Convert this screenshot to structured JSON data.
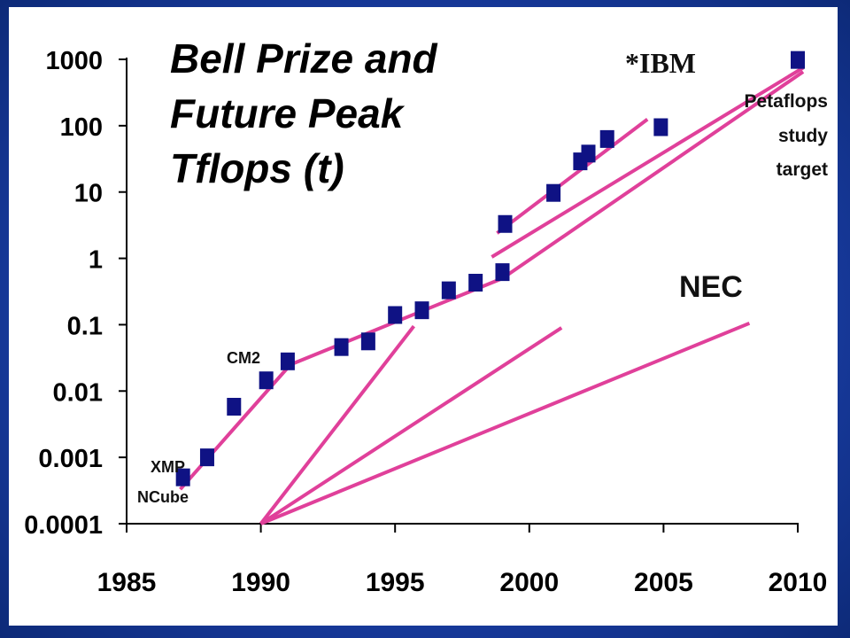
{
  "chart_data": {
    "type": "scatter",
    "title_lines": [
      "Bell Prize and",
      "Future Peak",
      "Tflops (t)"
    ],
    "yscale": "log",
    "ylim": [
      0.0001,
      1000
    ],
    "xlim": [
      1985,
      2010
    ],
    "yticks": [
      "1000",
      "100",
      "10",
      "1",
      "0.1",
      "0.01",
      "0.001",
      "0.0001"
    ],
    "ytick_values": [
      1000,
      100,
      10,
      1,
      0.1,
      0.01,
      0.001,
      0.0001
    ],
    "xticks": [
      "1985",
      "1990",
      "1995",
      "2000",
      "2005",
      "2010"
    ],
    "xtick_values": [
      1985,
      1990,
      1995,
      2000,
      2005,
      2010
    ],
    "grid": false,
    "marker_color": "#0f1284",
    "line_color": "#e0409a",
    "points": [
      {
        "x": 1987.1,
        "y": 0.0005
      },
      {
        "x": 1988.0,
        "y": 0.001
      },
      {
        "x": 1989.0,
        "y": 0.0058
      },
      {
        "x": 1990.2,
        "y": 0.0145
      },
      {
        "x": 1991.0,
        "y": 0.028
      },
      {
        "x": 1993.0,
        "y": 0.046
      },
      {
        "x": 1994.0,
        "y": 0.056
      },
      {
        "x": 1995.0,
        "y": 0.14
      },
      {
        "x": 1996.0,
        "y": 0.165
      },
      {
        "x": 1997.0,
        "y": 0.33
      },
      {
        "x": 1998.0,
        "y": 0.43
      },
      {
        "x": 1999.0,
        "y": 0.62
      },
      {
        "x": 1999.1,
        "y": 3.3
      },
      {
        "x": 2000.9,
        "y": 9.7
      },
      {
        "x": 2001.9,
        "y": 29
      },
      {
        "x": 2002.2,
        "y": 38
      },
      {
        "x": 2002.9,
        "y": 63
      },
      {
        "x": 2004.9,
        "y": 95
      },
      {
        "x": 2010.0,
        "y": 980
      }
    ],
    "trend_lines": [
      {
        "points": [
          [
            1987.0,
            0.00033
          ],
          [
            1991.1,
            0.025
          ],
          [
            1999.0,
            0.5
          ],
          [
            2010.2,
            650
          ]
        ]
      },
      {
        "points": [
          [
            1998.8,
            2.4
          ],
          [
            2004.4,
            125
          ]
        ]
      },
      {
        "points": [
          [
            1998.6,
            1.05
          ],
          [
            2010.2,
            750
          ]
        ]
      },
      {
        "points": [
          [
            1990.0,
            0.0001
          ],
          [
            1995.7,
            0.095
          ]
        ]
      },
      {
        "points": [
          [
            1990.0,
            0.0001
          ],
          [
            2001.2,
            0.09
          ]
        ]
      },
      {
        "points": [
          [
            1990.0,
            0.0001
          ],
          [
            2008.2,
            0.105
          ]
        ]
      }
    ],
    "annotations": {
      "ibm": "*IBM",
      "petaflops": [
        "Petaflops",
        "study",
        "target"
      ],
      "nec": "NEC",
      "cm2": "CM2",
      "xmp": "XMP",
      "ncube": "NCube"
    }
  }
}
